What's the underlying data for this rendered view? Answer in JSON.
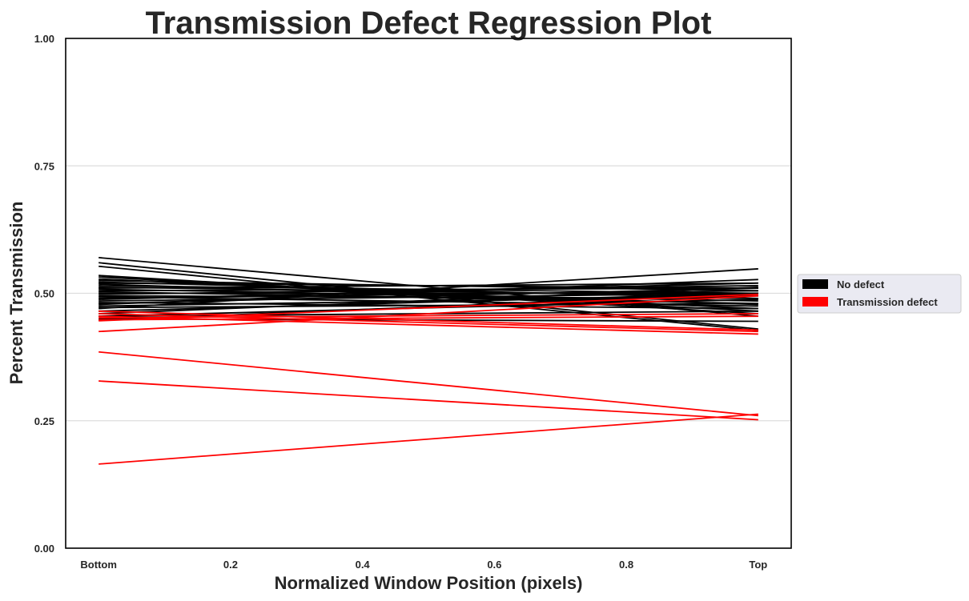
{
  "chart_data": {
    "type": "line",
    "title": "Transmission Defect Regression Plot",
    "xlabel": "Normalized Window Position (pixels)",
    "ylabel": "Percent Transmission",
    "xlim": [
      -0.05,
      1.05
    ],
    "ylim": [
      0.0,
      1.0
    ],
    "x_ticks": [
      {
        "value": 0.0,
        "label": "Bottom"
      },
      {
        "value": 0.2,
        "label": "0.2"
      },
      {
        "value": 0.4,
        "label": "0.4"
      },
      {
        "value": 0.6,
        "label": "0.6"
      },
      {
        "value": 0.8,
        "label": "0.8"
      },
      {
        "value": 1.0,
        "label": "Top"
      }
    ],
    "y_ticks": [
      {
        "value": 0.0,
        "label": "0.00"
      },
      {
        "value": 0.25,
        "label": "0.25"
      },
      {
        "value": 0.5,
        "label": "0.50"
      },
      {
        "value": 0.75,
        "label": "0.75"
      },
      {
        "value": 1.0,
        "label": "1.00"
      }
    ],
    "grid": {
      "y": true,
      "x": false
    },
    "legend_position": "right",
    "legend": [
      {
        "label": "No defect",
        "color": "#000000"
      },
      {
        "label": "Transmission defect",
        "color": "#ff0000"
      }
    ],
    "series": [
      {
        "group": "No defect",
        "color": "#000000",
        "lines": [
          [
            0.57,
            0.455
          ],
          [
            0.56,
            0.43
          ],
          [
            0.553,
            0.427
          ],
          [
            0.535,
            0.46
          ],
          [
            0.532,
            0.465
          ],
          [
            0.528,
            0.47
          ],
          [
            0.525,
            0.505
          ],
          [
            0.522,
            0.49
          ],
          [
            0.52,
            0.51
          ],
          [
            0.518,
            0.478
          ],
          [
            0.515,
            0.5
          ],
          [
            0.512,
            0.495
          ],
          [
            0.51,
            0.52
          ],
          [
            0.508,
            0.485
          ],
          [
            0.505,
            0.51
          ],
          [
            0.503,
            0.48
          ],
          [
            0.5,
            0.5
          ],
          [
            0.498,
            0.515
          ],
          [
            0.495,
            0.49
          ],
          [
            0.493,
            0.475
          ],
          [
            0.49,
            0.505
          ],
          [
            0.488,
            0.52
          ],
          [
            0.485,
            0.5
          ],
          [
            0.482,
            0.47
          ],
          [
            0.48,
            0.51
          ],
          [
            0.478,
            0.527
          ],
          [
            0.475,
            0.495
          ],
          [
            0.472,
            0.48
          ],
          [
            0.47,
            0.548
          ],
          [
            0.465,
            0.5
          ],
          [
            0.46,
            0.512
          ],
          [
            0.455,
            0.465
          ],
          [
            0.45,
            0.445
          ],
          [
            0.455,
            0.488
          ],
          [
            0.447,
            0.5
          ]
        ]
      },
      {
        "group": "Transmission defect",
        "color": "#ff0000",
        "lines": [
          [
            0.465,
            0.428
          ],
          [
            0.46,
            0.425
          ],
          [
            0.455,
            0.42
          ],
          [
            0.452,
            0.46
          ],
          [
            0.448,
            0.455
          ],
          [
            0.446,
            0.498
          ],
          [
            0.425,
            0.495
          ],
          [
            0.385,
            0.26
          ],
          [
            0.328,
            0.252
          ],
          [
            0.165,
            0.263
          ]
        ]
      }
    ]
  }
}
